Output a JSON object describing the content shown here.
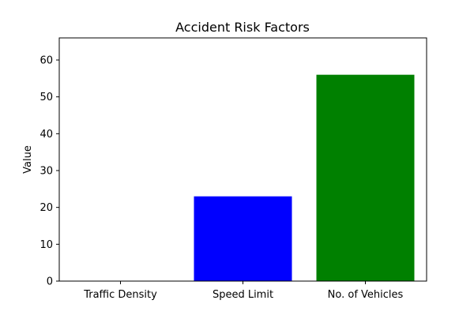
{
  "chart_data": {
    "type": "bar",
    "title": "Accident Risk Factors",
    "xlabel": "",
    "ylabel": "Value",
    "categories": [
      "Traffic Density",
      "Speed Limit",
      "No. of Vehicles"
    ],
    "values": [
      0,
      23,
      56
    ],
    "colors": [
      "#0000ff",
      "#0000ff",
      "#008000"
    ],
    "ylim": [
      0,
      66
    ],
    "yticks": [
      0,
      10,
      20,
      30,
      40,
      50,
      60
    ],
    "grid": false,
    "legend": "none"
  }
}
